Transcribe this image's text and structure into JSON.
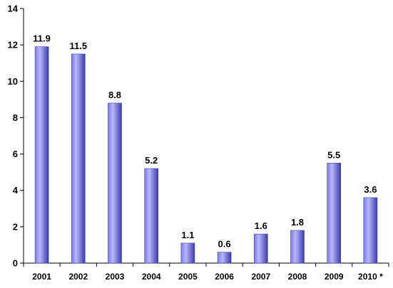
{
  "chart_data": {
    "type": "bar",
    "title": "",
    "xlabel": "",
    "ylabel": "",
    "categories": [
      "2001",
      "2002",
      "2003",
      "2004",
      "2005",
      "2006",
      "2007",
      "2008",
      "2009",
      "2010 *"
    ],
    "values": [
      11.9,
      11.5,
      8.8,
      5.2,
      1.1,
      0.6,
      1.6,
      1.8,
      5.5,
      3.6
    ],
    "data_labels": [
      "11.9",
      "11.5",
      "8.8",
      "5.2",
      "1.1",
      "0.6",
      "1.6",
      "1.8",
      "5.5",
      "3.6"
    ],
    "ylim": [
      0,
      14
    ],
    "y_ticks": [
      0,
      2,
      4,
      6,
      8,
      10,
      12,
      14
    ],
    "y_tick_labels": [
      "0",
      "2",
      "4",
      "6",
      "8",
      "10",
      "12",
      "14"
    ],
    "grid": false,
    "legend": "none",
    "colors": {
      "bar_fill_light": "#b8b8ff",
      "bar_fill_mid": "#7a7ae8",
      "bar_fill_dark": "#3c3ca8",
      "axis": "#000000",
      "background": "#ffffff"
    }
  }
}
